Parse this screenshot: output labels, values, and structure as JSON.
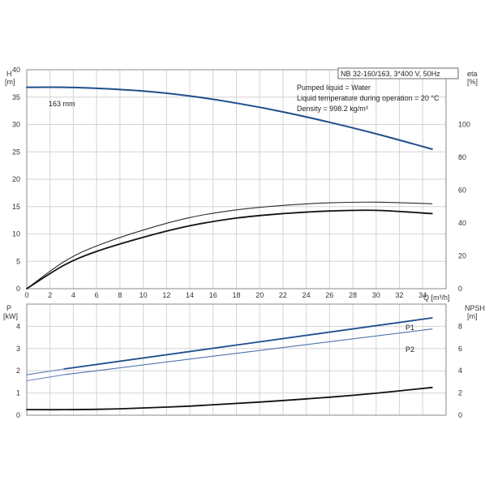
{
  "chart_data": [
    {
      "type": "line",
      "title": "NB 32-160/163, 3*400 V, 50Hz",
      "annotations": [
        "Pumped liquid = Water",
        "Liquid temperature during operation = 20 °C",
        "Density = 998.2 kg/m³"
      ],
      "xlabel": "Q [m³/h]",
      "xlim": [
        0,
        36
      ],
      "x_ticks": [
        "0",
        "2",
        "4",
        "6",
        "8",
        "10",
        "12",
        "14",
        "16",
        "18",
        "20",
        "22",
        "24",
        "26",
        "28",
        "30",
        "32",
        "34"
      ],
      "ylabel_left": [
        "H",
        "[m]"
      ],
      "ylim_left": [
        0,
        40
      ],
      "y_ticks_left": [
        "0",
        "5",
        "10",
        "15",
        "20",
        "25",
        "30",
        "35",
        "40"
      ],
      "ylabel_right": [
        "eta",
        "[%]"
      ],
      "ylim_right": [
        0,
        133.3
      ],
      "y_ticks_right": [
        "0",
        "20",
        "40",
        "60",
        "80",
        "100"
      ],
      "grid": true,
      "series": [
        {
          "name": "163 mm",
          "color": "#1f4e8c",
          "axis": "left",
          "x": [
            0,
            3.2,
            6,
            10,
            14,
            18,
            22,
            26,
            30,
            34.8
          ],
          "y": [
            36.8,
            36.8,
            36.6,
            36.1,
            35.2,
            33.9,
            32.3,
            30.4,
            28.3,
            25.5
          ]
        },
        {
          "name": "",
          "color": "#2b2b2b",
          "axis": "right",
          "x": [
            0,
            3.2,
            6,
            10,
            14,
            18,
            22,
            26,
            30,
            34.8
          ],
          "y": [
            0,
            16.5,
            26,
            35.7,
            43.3,
            48,
            50.7,
            52.3,
            52.7,
            51.7
          ]
        },
        {
          "name": "",
          "color": "#111111",
          "axis": "right",
          "x": [
            0,
            3.2,
            6,
            10,
            14,
            18,
            22,
            26,
            30,
            34.8
          ],
          "y": [
            0,
            14.3,
            22.7,
            31.3,
            38.3,
            43,
            45.7,
            47.3,
            47.7,
            45.7
          ]
        }
      ]
    },
    {
      "type": "line",
      "xlim": [
        0,
        36
      ],
      "ylabel_left": [
        "P",
        "[kW]"
      ],
      "ylim_left": [
        0,
        5
      ],
      "y_ticks_left": [
        "0",
        "1",
        "2",
        "3",
        "4"
      ],
      "ylabel_right": [
        "NPSH",
        "[m]"
      ],
      "ylim_right": [
        0,
        10
      ],
      "y_ticks_right": [
        "0",
        "2",
        "4",
        "6",
        "8"
      ],
      "grid": true,
      "series": [
        {
          "name": "P1",
          "color": "#1f4e8c",
          "axis": "left",
          "x": [
            3.2,
            34.8
          ],
          "y": [
            2.08,
            4.38
          ]
        },
        {
          "name": "",
          "color": "#5a7fb0",
          "axis": "left",
          "x": [
            0,
            3.2
          ],
          "y": [
            1.82,
            2.08
          ]
        },
        {
          "name": "P2",
          "color": "#4f74a8",
          "axis": "left",
          "x": [
            3.2,
            34.8
          ],
          "y": [
            1.82,
            3.88
          ]
        },
        {
          "name": "",
          "color": "#6d8cbb",
          "axis": "left",
          "x": [
            0,
            3.2
          ],
          "y": [
            1.55,
            1.82
          ]
        },
        {
          "name": "",
          "color": "#111111",
          "axis": "right",
          "x": [
            0,
            3.2,
            8,
            14,
            20,
            26,
            30,
            34.8
          ],
          "y": [
            0.5,
            0.5,
            0.58,
            0.82,
            1.18,
            1.62,
            1.98,
            2.5
          ]
        }
      ]
    }
  ]
}
